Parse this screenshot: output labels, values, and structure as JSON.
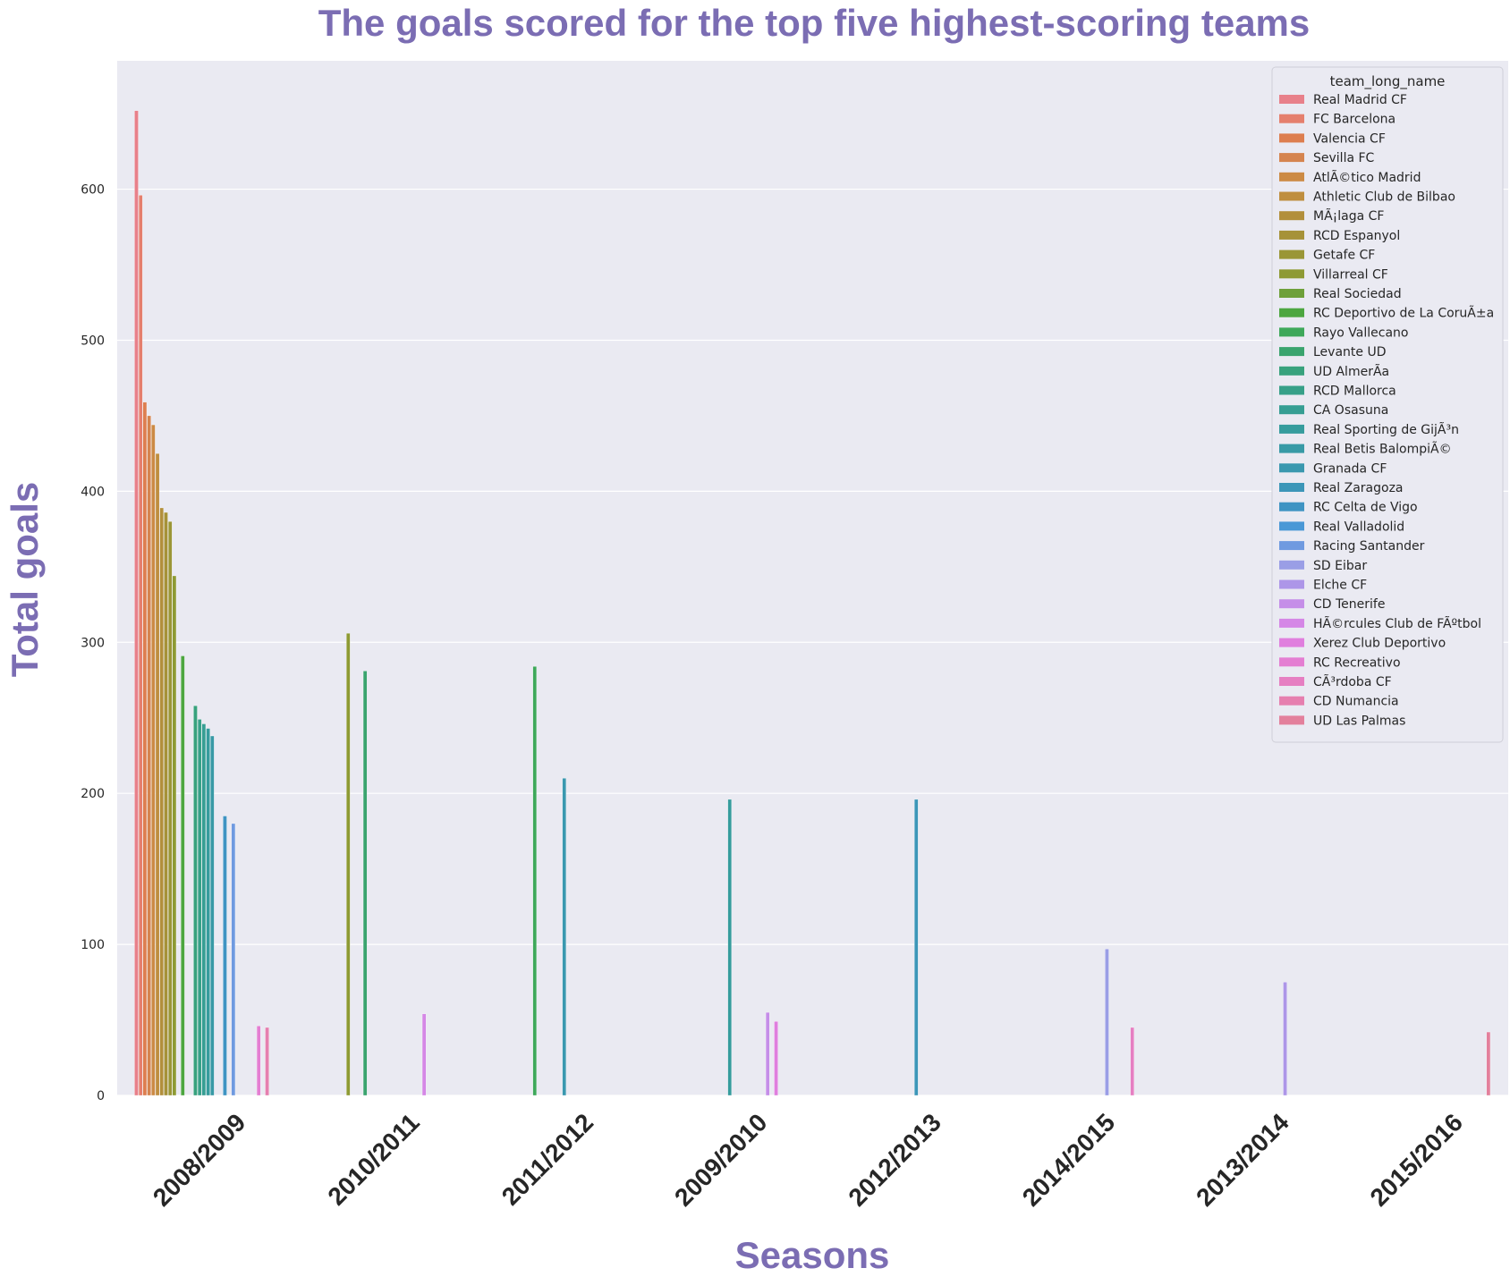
{
  "chart_data": {
    "type": "bar",
    "title": "The goals scored for the top five highest-scoring teams",
    "xlabel": "Seasons",
    "ylabel": "Total goals",
    "categories": [
      "2008/2009",
      "2010/2011",
      "2011/2012",
      "2009/2010",
      "2012/2013",
      "2014/2015",
      "2013/2014",
      "2015/2016"
    ],
    "yticks": [
      "0",
      "100",
      "200",
      "300",
      "400",
      "500",
      "600"
    ],
    "ylim": [
      0,
      685
    ],
    "grid": true,
    "legend": {
      "title": "team_long_name",
      "placement": "top-right"
    },
    "series": [
      {
        "name": "Real Madrid CF",
        "color": "#e8808a",
        "values": [
          652,
          null,
          null,
          null,
          null,
          null,
          null,
          null
        ]
      },
      {
        "name": "FC Barcelona",
        "color": "#e57f6d",
        "values": [
          596,
          null,
          null,
          null,
          null,
          null,
          null,
          null
        ]
      },
      {
        "name": "Valencia CF",
        "color": "#dd7e4f",
        "values": [
          459,
          null,
          null,
          null,
          null,
          null,
          null,
          null
        ]
      },
      {
        "name": "Sevilla FC",
        "color": "#d5844f",
        "values": [
          450,
          null,
          null,
          null,
          null,
          null,
          null,
          null
        ]
      },
      {
        "name": "AtlÃ©tico Madrid",
        "color": "#cc8a44",
        "values": [
          444,
          null,
          null,
          null,
          null,
          null,
          null,
          null
        ]
      },
      {
        "name": "Athletic Club de Bilbao",
        "color": "#bf8e3f",
        "values": [
          425,
          null,
          null,
          null,
          null,
          null,
          null,
          null
        ]
      },
      {
        "name": "MÃ¡laga CF",
        "color": "#b28f3b",
        "values": [
          389,
          null,
          null,
          null,
          null,
          null,
          null,
          null
        ]
      },
      {
        "name": "RCD Espanyol",
        "color": "#a69238",
        "values": [
          386,
          null,
          null,
          null,
          null,
          null,
          null,
          null
        ]
      },
      {
        "name": "Getafe CF",
        "color": "#9a9636",
        "values": [
          380,
          null,
          null,
          null,
          null,
          null,
          null,
          null
        ]
      },
      {
        "name": "Villarreal CF",
        "color": "#8e9a34",
        "values": [
          344,
          306,
          null,
          null,
          null,
          null,
          null,
          null
        ]
      },
      {
        "name": "Real Sociedad",
        "color": "#6ea03a",
        "values": [
          null,
          null,
          null,
          null,
          null,
          null,
          null,
          null
        ]
      },
      {
        "name": "RC Deportivo de La CoruÃ±a",
        "color": "#4da640",
        "values": [
          291,
          null,
          null,
          null,
          null,
          null,
          null,
          null
        ]
      },
      {
        "name": "Rayo Vallecano",
        "color": "#3ea85a",
        "values": [
          null,
          null,
          284,
          null,
          null,
          null,
          null,
          null
        ]
      },
      {
        "name": "Levante UD",
        "color": "#3aa46e",
        "values": [
          null,
          281,
          null,
          null,
          null,
          null,
          null,
          null
        ]
      },
      {
        "name": "UD AlmerÃ­a",
        "color": "#38a27d",
        "values": [
          258,
          null,
          null,
          null,
          null,
          null,
          null,
          null
        ]
      },
      {
        "name": "RCD Mallorca",
        "color": "#37a088",
        "values": [
          249,
          null,
          null,
          null,
          null,
          null,
          null,
          null
        ]
      },
      {
        "name": "CA Osasuna",
        "color": "#369e93",
        "values": [
          246,
          null,
          null,
          null,
          null,
          null,
          null,
          null
        ]
      },
      {
        "name": "Real Sporting de GijÃ³n",
        "color": "#369c9d",
        "values": [
          243,
          null,
          null,
          196,
          null,
          null,
          null,
          null
        ]
      },
      {
        "name": "Real Betis BalompiÃ©",
        "color": "#389aa6",
        "values": [
          238,
          null,
          null,
          null,
          null,
          null,
          null,
          null
        ]
      },
      {
        "name": "Granada CF",
        "color": "#3a98af",
        "values": [
          null,
          null,
          210,
          null,
          null,
          null,
          null,
          null
        ]
      },
      {
        "name": "Real Zaragoza",
        "color": "#3c96b8",
        "values": [
          null,
          null,
          null,
          null,
          196,
          null,
          null,
          null
        ]
      },
      {
        "name": "RC Celta de Vigo",
        "color": "#3f94c3",
        "values": [
          185,
          null,
          null,
          null,
          null,
          null,
          null,
          null
        ]
      },
      {
        "name": "Real Valladolid",
        "color": "#4a98d6",
        "values": [
          null,
          null,
          null,
          null,
          null,
          null,
          null,
          null
        ]
      },
      {
        "name": "Racing Santander",
        "color": "#6f9ae0",
        "values": [
          180,
          null,
          null,
          null,
          null,
          null,
          null,
          null
        ]
      },
      {
        "name": "SD Eibar",
        "color": "#9a9ee6",
        "values": [
          null,
          null,
          null,
          null,
          null,
          97,
          null,
          null
        ]
      },
      {
        "name": "Elche CF",
        "color": "#ad96e8",
        "values": [
          null,
          null,
          null,
          null,
          null,
          null,
          75,
          null
        ]
      },
      {
        "name": "CD Tenerife",
        "color": "#c58ee8",
        "values": [
          null,
          null,
          null,
          55,
          null,
          null,
          null,
          null
        ]
      },
      {
        "name": "HÃ©rcules Club de FÃºtbol",
        "color": "#d587e6",
        "values": [
          null,
          54,
          null,
          null,
          null,
          null,
          null,
          null
        ]
      },
      {
        "name": "Xerez Club Deportivo",
        "color": "#e07fde",
        "values": [
          null,
          null,
          null,
          49,
          null,
          null,
          null,
          null
        ]
      },
      {
        "name": "RC Recreativo",
        "color": "#e47ed2",
        "values": [
          46,
          null,
          null,
          null,
          null,
          null,
          null,
          null
        ]
      },
      {
        "name": "CÃ³rdoba CF",
        "color": "#e67fc2",
        "values": [
          null,
          null,
          null,
          null,
          null,
          45,
          null,
          null
        ]
      },
      {
        "name": "CD Numancia",
        "color": "#e67faf",
        "values": [
          45,
          null,
          null,
          null,
          null,
          null,
          null,
          null
        ]
      },
      {
        "name": "UD Las Palmas",
        "color": "#e3809c",
        "values": [
          null,
          null,
          null,
          null,
          null,
          null,
          null,
          42
        ]
      }
    ]
  }
}
